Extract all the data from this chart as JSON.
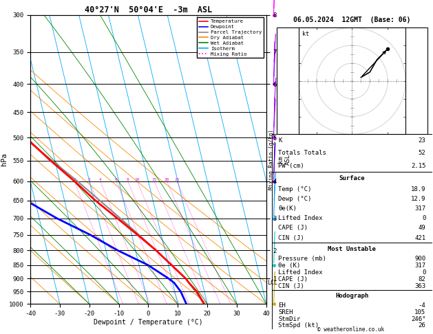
{
  "title_left": "40°27'N  50°04'E  -3m  ASL",
  "title_right": "06.05.2024  12GMT  (Base: 06)",
  "xlabel": "Dewpoint / Temperature (°C)",
  "ylabel_left": "hPa",
  "ylabel_right_km": "km\nASL",
  "ylabel_right_mix": "Mixing Ratio (g/kg)",
  "pressure_levels": [
    300,
    350,
    400,
    450,
    500,
    550,
    600,
    650,
    700,
    750,
    800,
    850,
    900,
    950,
    1000
  ],
  "pressure_ticks": [
    300,
    350,
    400,
    450,
    500,
    550,
    600,
    650,
    700,
    750,
    800,
    850,
    900,
    950,
    1000
  ],
  "temp_range": [
    -40,
    40
  ],
  "km_ticks": [
    1,
    2,
    3,
    4,
    5,
    6,
    7,
    8
  ],
  "km_pressures": [
    900,
    800,
    700,
    600,
    500,
    400,
    350,
    300
  ],
  "lcl_pressure": 916,
  "legend_items": [
    {
      "label": "Temperature",
      "color": "#ff0000",
      "style": "solid"
    },
    {
      "label": "Dewpoint",
      "color": "#0000ff",
      "style": "solid"
    },
    {
      "label": "Parcel Trajectory",
      "color": "#888888",
      "style": "solid"
    },
    {
      "label": "Dry Adiabat",
      "color": "#ff8800",
      "style": "solid"
    },
    {
      "label": "Wet Adiabat",
      "color": "#008800",
      "style": "solid"
    },
    {
      "label": "Isotherm",
      "color": "#00aaff",
      "style": "solid"
    },
    {
      "label": "Mixing Ratio",
      "color": "#ff00cc",
      "style": "dotted"
    }
  ],
  "bg_color": "#ffffff",
  "isotherm_color": "#00aaff",
  "dry_adiabat_color": "#ff8800",
  "wet_adiabat_color": "#008800",
  "mixing_ratio_color": "#ff00cc",
  "temp_color": "#ff0000",
  "dewpoint_color": "#0000ff",
  "parcel_color": "#888888",
  "skew_factor": 45,
  "isotherms": [
    -50,
    -40,
    -30,
    -20,
    -10,
    0,
    10,
    20,
    30,
    40,
    50
  ],
  "dry_adiabats": [
    -40,
    -30,
    -20,
    -10,
    0,
    10,
    20,
    30,
    40,
    50,
    60
  ],
  "wet_adiabats": [
    -20,
    -10,
    0,
    10,
    20,
    30,
    40
  ],
  "mixing_ratios": [
    2,
    3,
    4,
    6,
    8,
    10,
    15,
    20,
    25
  ],
  "temperature_profile": {
    "pressure": [
      1000,
      950,
      916,
      900,
      850,
      800,
      750,
      700,
      650,
      600,
      550,
      500,
      450,
      400,
      350,
      300
    ],
    "temp": [
      18.9,
      17.5,
      15.5,
      14.8,
      11.0,
      7.0,
      2.0,
      -3.5,
      -9.5,
      -15.0,
      -21.5,
      -28.0,
      -36.0,
      -44.0,
      -53.0,
      -61.0
    ]
  },
  "dewpoint_profile": {
    "pressure": [
      1000,
      950,
      916,
      900,
      850,
      800,
      750,
      700,
      650,
      600,
      550,
      500,
      450,
      400,
      350,
      300
    ],
    "dewp": [
      12.9,
      12.0,
      10.5,
      9.0,
      3.0,
      -6.0,
      -14.0,
      -24.0,
      -33.0,
      -42.0,
      -50.0,
      -57.0,
      -63.0,
      -68.0,
      -75.0,
      -82.0
    ]
  },
  "parcel_profile": {
    "pressure": [
      1000,
      950,
      916,
      900,
      850,
      800,
      750,
      700,
      650,
      600,
      550,
      500,
      450,
      400,
      350,
      300
    ],
    "temp": [
      18.9,
      17.0,
      15.5,
      14.8,
      11.0,
      7.0,
      2.5,
      -2.5,
      -8.0,
      -14.0,
      -21.0,
      -28.5,
      -36.5,
      -45.5,
      -55.0,
      -64.5
    ]
  },
  "wind_barb_data": [
    {
      "pressure": 300,
      "color": "#ff00ff",
      "u": 25,
      "v": 20
    },
    {
      "pressure": 400,
      "color": "#aa00ff",
      "u": 20,
      "v": 18
    },
    {
      "pressure": 500,
      "color": "#aa00ff",
      "u": 18,
      "v": 15
    },
    {
      "pressure": 600,
      "color": "#5500cc",
      "u": 15,
      "v": 12
    },
    {
      "pressure": 700,
      "color": "#0099ff",
      "u": 12,
      "v": 8
    },
    {
      "pressure": 850,
      "color": "#00cccc",
      "u": 8,
      "v": 5
    },
    {
      "pressure": 1000,
      "color": "#ccaa00",
      "u": 5,
      "v": 3
    }
  ],
  "hodograph_u": [
    5,
    10,
    14,
    20
  ],
  "hodograph_v": [
    2,
    5,
    12,
    18
  ],
  "stats_indices": [
    {
      "label": "K",
      "value": "23"
    },
    {
      "label": "Totals Totals",
      "value": "52"
    },
    {
      "label": "PW (cm)",
      "value": "2.15"
    }
  ],
  "stats_surface_title": "Surface",
  "stats_surface": [
    {
      "label": "Temp (°C)",
      "value": "18.9"
    },
    {
      "label": "Dewp (°C)",
      "value": "12.9"
    },
    {
      "label": "θe(K)",
      "value": "317"
    },
    {
      "label": "Lifted Index",
      "value": "0"
    },
    {
      "label": "CAPE (J)",
      "value": "49"
    },
    {
      "label": "CIN (J)",
      "value": "421"
    }
  ],
  "stats_mu_title": "Most Unstable",
  "stats_mu": [
    {
      "label": "Pressure (mb)",
      "value": "900"
    },
    {
      "label": "θe (K)",
      "value": "317"
    },
    {
      "label": "Lifted Index",
      "value": "0"
    },
    {
      "label": "CAPE (J)",
      "value": "82"
    },
    {
      "label": "CIN (J)",
      "value": "363"
    }
  ],
  "stats_hodo_title": "Hodograph",
  "stats_hodo": [
    {
      "label": "EH",
      "value": "-4"
    },
    {
      "label": "SREH",
      "value": "105"
    },
    {
      "label": "StmDir",
      "value": "246°"
    },
    {
      "label": "StmSpd (kt)",
      "value": "26"
    }
  ],
  "copyright": "© weatheronline.co.uk"
}
